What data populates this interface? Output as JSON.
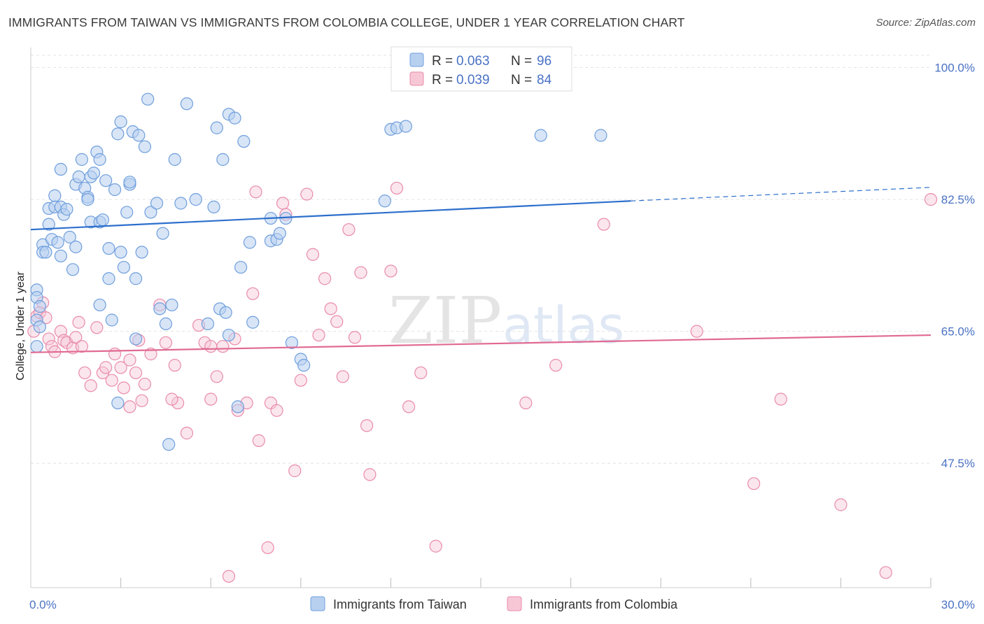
{
  "title": "IMMIGRANTS FROM TAIWAN VS IMMIGRANTS FROM COLOMBIA COLLEGE, UNDER 1 YEAR CORRELATION CHART",
  "source": "Source: ZipAtlas.com",
  "watermark": {
    "zip": "ZIP",
    "atlas": "atlas"
  },
  "colors": {
    "taiwan_fill": "#b8d0f0",
    "taiwan_stroke": "#6f9fdc",
    "taiwan_line": "#2c6fcc",
    "colombia_fill": "#f7c7d6",
    "colombia_stroke": "#e98bab",
    "colombia_line": "#e06a93",
    "grid": "#e3e3e3",
    "axis_label": "#4a72c4"
  },
  "legend": {
    "rows": [
      {
        "r_label": "R =",
        "r_value": "0.063",
        "n_label": "N =",
        "n_value": "96"
      },
      {
        "r_label": "R =",
        "r_value": "0.039",
        "n_label": "N =",
        "n_value": "84"
      }
    ]
  },
  "chart_data": {
    "type": "scatter",
    "xlabel": "",
    "ylabel": "College, Under 1 year",
    "xlim": [
      0,
      30
    ],
    "ylim": [
      31,
      102
    ],
    "x_tick_labels": [
      "0.0%",
      "30.0%"
    ],
    "y_ticks": [
      47.5,
      65.0,
      82.5,
      100.0
    ],
    "y_tick_labels": [
      "47.5%",
      "65.0%",
      "82.5%",
      "100.0%"
    ],
    "grid": true,
    "series": [
      {
        "name": "Immigrants from Taiwan",
        "trend": {
          "x0": 0,
          "y0": 78.5,
          "x1": 20.0,
          "y1": 82.3,
          "dash_to_x": 30,
          "dash_to_y": 84.1
        },
        "points": [
          [
            0.2,
            66.5
          ],
          [
            0.2,
            63.0
          ],
          [
            0.2,
            70.5
          ],
          [
            0.2,
            69.5
          ],
          [
            0.3,
            68.3
          ],
          [
            0.3,
            65.6
          ],
          [
            0.4,
            76.5
          ],
          [
            0.4,
            75.5
          ],
          [
            0.5,
            75.5
          ],
          [
            0.6,
            81.3
          ],
          [
            0.6,
            79.2
          ],
          [
            0.7,
            77.2
          ],
          [
            0.8,
            83.0
          ],
          [
            0.8,
            81.5
          ],
          [
            0.9,
            76.8
          ],
          [
            1.0,
            81.5
          ],
          [
            1.0,
            75.0
          ],
          [
            1.0,
            86.5
          ],
          [
            1.1,
            80.5
          ],
          [
            1.2,
            81.2
          ],
          [
            1.3,
            77.5
          ],
          [
            1.4,
            73.2
          ],
          [
            1.5,
            76.2
          ],
          [
            1.5,
            84.5
          ],
          [
            1.6,
            85.5
          ],
          [
            1.7,
            87.8
          ],
          [
            1.8,
            84.0
          ],
          [
            1.9,
            82.8
          ],
          [
            1.9,
            82.5
          ],
          [
            2.0,
            79.5
          ],
          [
            2.0,
            85.5
          ],
          [
            2.1,
            86.0
          ],
          [
            2.2,
            88.8
          ],
          [
            2.3,
            87.8
          ],
          [
            2.3,
            79.5
          ],
          [
            2.3,
            68.5
          ],
          [
            2.4,
            79.8
          ],
          [
            2.5,
            85.0
          ],
          [
            2.6,
            72.0
          ],
          [
            2.6,
            76.0
          ],
          [
            2.7,
            66.5
          ],
          [
            2.8,
            83.8
          ],
          [
            2.9,
            91.2
          ],
          [
            2.9,
            55.5
          ],
          [
            3.0,
            75.5
          ],
          [
            3.0,
            92.8
          ],
          [
            3.1,
            73.5
          ],
          [
            3.2,
            80.8
          ],
          [
            3.3,
            84.5
          ],
          [
            3.3,
            84.8
          ],
          [
            3.4,
            91.5
          ],
          [
            3.5,
            64.0
          ],
          [
            3.5,
            72.0
          ],
          [
            3.6,
            91.0
          ],
          [
            3.7,
            75.5
          ],
          [
            3.8,
            89.5
          ],
          [
            3.9,
            95.8
          ],
          [
            4.0,
            80.8
          ],
          [
            4.2,
            82.0
          ],
          [
            4.3,
            68.0
          ],
          [
            4.4,
            78.0
          ],
          [
            4.5,
            66.0
          ],
          [
            4.6,
            50.0
          ],
          [
            4.7,
            68.5
          ],
          [
            4.8,
            87.8
          ],
          [
            5.0,
            82.0
          ],
          [
            5.2,
            95.2
          ],
          [
            5.5,
            82.5
          ],
          [
            5.9,
            66.0
          ],
          [
            6.1,
            81.5
          ],
          [
            6.2,
            92.0
          ],
          [
            6.3,
            68.0
          ],
          [
            6.4,
            87.8
          ],
          [
            6.5,
            67.5
          ],
          [
            6.6,
            93.8
          ],
          [
            6.6,
            64.5
          ],
          [
            6.8,
            93.3
          ],
          [
            6.9,
            55.0
          ],
          [
            7.0,
            73.5
          ],
          [
            7.1,
            90.2
          ],
          [
            7.3,
            76.8
          ],
          [
            7.4,
            66.2
          ],
          [
            8.0,
            80.0
          ],
          [
            8.0,
            77.0
          ],
          [
            8.2,
            77.2
          ],
          [
            8.3,
            78.0
          ],
          [
            8.5,
            80.0
          ],
          [
            8.7,
            63.5
          ],
          [
            9.0,
            61.3
          ],
          [
            9.1,
            60.5
          ],
          [
            11.8,
            82.3
          ],
          [
            12.0,
            91.8
          ],
          [
            12.2,
            92.0
          ],
          [
            17.0,
            91.0
          ],
          [
            19.0,
            91.0
          ],
          [
            12.5,
            92.2
          ]
        ]
      },
      {
        "name": "Immigrants from Colombia",
        "trend": {
          "x0": 0,
          "y0": 62.2,
          "x1": 30,
          "y1": 64.5
        },
        "points": [
          [
            0.1,
            65.0
          ],
          [
            0.2,
            67.0
          ],
          [
            0.3,
            67.5
          ],
          [
            0.4,
            68.8
          ],
          [
            0.5,
            66.8
          ],
          [
            0.6,
            64.0
          ],
          [
            0.7,
            63.0
          ],
          [
            0.8,
            62.3
          ],
          [
            1.0,
            65.0
          ],
          [
            1.1,
            63.8
          ],
          [
            1.2,
            63.5
          ],
          [
            1.4,
            62.8
          ],
          [
            1.5,
            64.2
          ],
          [
            1.6,
            66.2
          ],
          [
            1.7,
            63.0
          ],
          [
            1.8,
            59.5
          ],
          [
            2.0,
            57.8
          ],
          [
            2.2,
            65.5
          ],
          [
            2.4,
            59.5
          ],
          [
            2.5,
            60.2
          ],
          [
            2.7,
            58.5
          ],
          [
            2.8,
            62.0
          ],
          [
            3.0,
            60.2
          ],
          [
            3.1,
            57.5
          ],
          [
            3.3,
            61.2
          ],
          [
            3.5,
            59.5
          ],
          [
            3.6,
            63.8
          ],
          [
            3.7,
            55.8
          ],
          [
            3.8,
            58.0
          ],
          [
            4.0,
            62.0
          ],
          [
            4.3,
            68.5
          ],
          [
            4.5,
            63.5
          ],
          [
            4.8,
            60.5
          ],
          [
            4.9,
            55.5
          ],
          [
            5.2,
            51.5
          ],
          [
            5.6,
            65.8
          ],
          [
            5.8,
            63.5
          ],
          [
            6.0,
            63.0
          ],
          [
            6.2,
            59.0
          ],
          [
            6.4,
            63.0
          ],
          [
            6.6,
            32.5
          ],
          [
            6.8,
            64.0
          ],
          [
            6.9,
            54.5
          ],
          [
            7.2,
            55.5
          ],
          [
            7.4,
            70.0
          ],
          [
            7.5,
            83.5
          ],
          [
            7.6,
            50.5
          ],
          [
            7.9,
            36.3
          ],
          [
            8.0,
            55.5
          ],
          [
            8.2,
            54.5
          ],
          [
            8.4,
            82.0
          ],
          [
            8.5,
            80.5
          ],
          [
            8.8,
            46.5
          ],
          [
            9.0,
            58.5
          ],
          [
            9.2,
            83.2
          ],
          [
            9.4,
            75.2
          ],
          [
            9.6,
            64.5
          ],
          [
            9.8,
            72.0
          ],
          [
            10.0,
            68.0
          ],
          [
            10.2,
            66.3
          ],
          [
            10.4,
            59.0
          ],
          [
            10.6,
            78.5
          ],
          [
            10.8,
            64.2
          ],
          [
            11.0,
            72.8
          ],
          [
            11.2,
            52.5
          ],
          [
            11.3,
            46.0
          ],
          [
            12.0,
            73.0
          ],
          [
            12.2,
            84.0
          ],
          [
            12.6,
            55.0
          ],
          [
            13.0,
            59.5
          ],
          [
            13.5,
            36.5
          ],
          [
            14.3,
            100.5
          ],
          [
            16.5,
            55.5
          ],
          [
            17.5,
            60.5
          ],
          [
            19.1,
            79.2
          ],
          [
            22.2,
            65.0
          ],
          [
            24.1,
            44.8
          ],
          [
            25.0,
            56.0
          ],
          [
            27.0,
            42.0
          ],
          [
            28.5,
            33.0
          ],
          [
            30.0,
            82.5
          ],
          [
            6.0,
            56.0
          ],
          [
            4.7,
            56.0
          ],
          [
            3.3,
            55.0
          ]
        ]
      }
    ]
  },
  "bottom_legend": [
    "Immigrants from Taiwan",
    "Immigrants from Colombia"
  ]
}
